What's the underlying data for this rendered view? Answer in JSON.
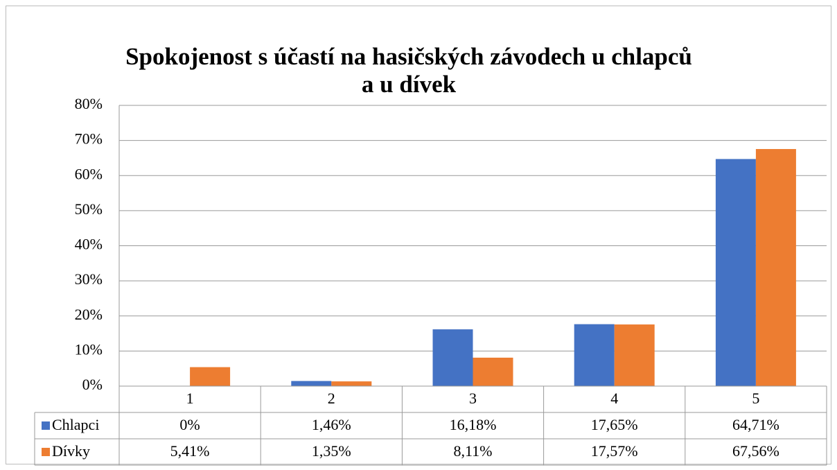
{
  "chart_data": {
    "type": "bar",
    "title": "Spokojenost s účastí na hasičských závodech u chlapců a u dívek",
    "categories": [
      "1",
      "2",
      "3",
      "4",
      "5"
    ],
    "series": [
      {
        "name": "Chlapci",
        "color": "#4472c4",
        "values": [
          0,
          1.46,
          16.18,
          17.65,
          64.71
        ],
        "value_labels": [
          "0%",
          "1,46%",
          "16,18%",
          "17,65%",
          "64,71%"
        ]
      },
      {
        "name": "Dívky",
        "color": "#ed7d31",
        "values": [
          5.41,
          1.35,
          8.11,
          17.57,
          67.56
        ],
        "value_labels": [
          "5,41%",
          "1,35%",
          "8,11%",
          "17,57%",
          "67,56%"
        ]
      }
    ],
    "ylim": [
      0,
      80
    ],
    "yticks": [
      {
        "value": 0,
        "label": "0%"
      },
      {
        "value": 10,
        "label": "10%"
      },
      {
        "value": 20,
        "label": "20%"
      },
      {
        "value": 30,
        "label": "30%"
      },
      {
        "value": 40,
        "label": "40%"
      },
      {
        "value": 50,
        "label": "50%"
      },
      {
        "value": 60,
        "label": "60%"
      },
      {
        "value": 70,
        "label": "70%"
      },
      {
        "value": 80,
        "label": "80%"
      }
    ],
    "grid": true,
    "data_table": true
  }
}
